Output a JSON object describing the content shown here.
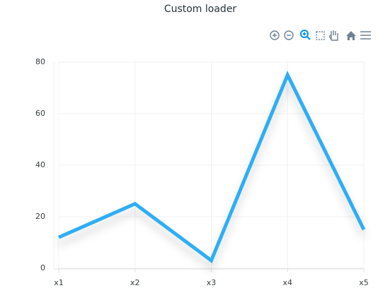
{
  "chart_data": {
    "type": "line",
    "title": "Custom loader",
    "categories": [
      "x1",
      "x2",
      "x3",
      "x4",
      "x5"
    ],
    "values": [
      12,
      25,
      3,
      75,
      15
    ],
    "color": "#2eaef5",
    "ylim": [
      0,
      80
    ],
    "yticks": [
      0,
      20,
      40,
      60,
      80
    ],
    "grid": true
  }
}
